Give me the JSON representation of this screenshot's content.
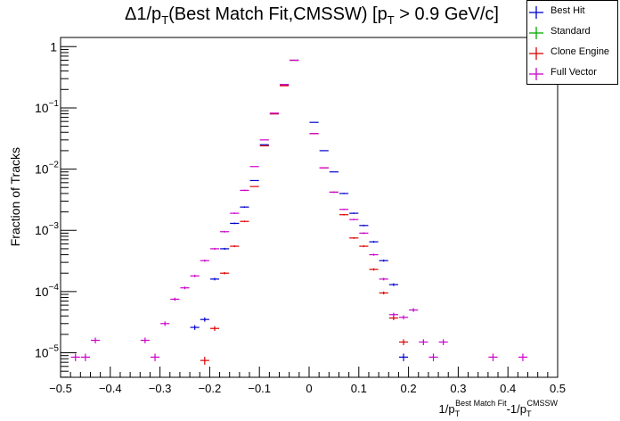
{
  "chart_data": {
    "type": "scatter",
    "title": "Δ1/pT(Best Match Fit,CMSSW) [pT > 0.9 GeV/c]",
    "title_parts": {
      "prefix": "Δ1/p",
      "sub1": "T",
      "middle": "(Best Match Fit,CMSSW) [p",
      "sub2": "T",
      "suffix": " > 0.9 GeV/c]"
    },
    "ylabel": "Fraction of Tracks",
    "xlabel": "1/pT^Best Match Fit-1/pT^CMSSW",
    "xlabel_parts": {
      "a": "1/p",
      "a_sub": "T",
      "a_sup": "Best Match Fit",
      "b": "-1/p",
      "b_sub": "T",
      "b_sup": "CMSSW"
    },
    "xlim": [
      -0.5,
      0.5
    ],
    "ylim_log10": [
      -5.4,
      0.15
    ],
    "y_scale": "log",
    "bin_width": 0.02,
    "x_ticks": [
      "−0.5",
      "−0.4",
      "−0.3",
      "−0.2",
      "−0.1",
      "0",
      "0.1",
      "0.2",
      "0.3",
      "0.4",
      "0.5"
    ],
    "x_tick_values": [
      -0.5,
      -0.4,
      -0.3,
      -0.2,
      -0.1,
      0,
      0.1,
      0.2,
      0.3,
      0.4,
      0.5
    ],
    "y_ticks": [
      {
        "value": 1,
        "base": "1",
        "exp": ""
      },
      {
        "value": 0.1,
        "base": "10",
        "exp": "−1"
      },
      {
        "value": 0.01,
        "base": "10",
        "exp": "−2"
      },
      {
        "value": 0.001,
        "base": "10",
        "exp": "−3"
      },
      {
        "value": 0.0001,
        "base": "10",
        "exp": "−4"
      },
      {
        "value": 1e-05,
        "base": "10",
        "exp": "−5"
      }
    ],
    "legend_position": "top-right",
    "series": [
      {
        "name": "Best Hit",
        "color": "#0000cc",
        "points": [
          {
            "x": -0.23,
            "y": 2.6e-05
          },
          {
            "x": -0.21,
            "y": 3.5e-05
          },
          {
            "x": -0.19,
            "y": 0.00016
          },
          {
            "x": -0.17,
            "y": 0.0005
          },
          {
            "x": -0.15,
            "y": 0.0013
          },
          {
            "x": -0.13,
            "y": 0.0024
          },
          {
            "x": -0.11,
            "y": 0.0065
          },
          {
            "x": -0.09,
            "y": 0.025
          },
          {
            "x": -0.07,
            "y": 0.08
          },
          {
            "x": -0.05,
            "y": 0.24
          },
          {
            "x": -0.03,
            "y": 0.6
          },
          {
            "x": 0.01,
            "y": 0.058
          },
          {
            "x": 0.03,
            "y": 0.02
          },
          {
            "x": 0.05,
            "y": 0.009
          },
          {
            "x": 0.07,
            "y": 0.004
          },
          {
            "x": 0.09,
            "y": 0.0019
          },
          {
            "x": 0.11,
            "y": 0.0012
          },
          {
            "x": 0.13,
            "y": 0.00065
          },
          {
            "x": 0.15,
            "y": 0.00032
          },
          {
            "x": 0.17,
            "y": 0.00013
          },
          {
            "x": 0.19,
            "y": 8.5e-06
          }
        ]
      },
      {
        "name": "Standard",
        "color": "#00aa00",
        "points": []
      },
      {
        "name": "Clone Engine",
        "color": "#dd0000",
        "points": [
          {
            "x": -0.21,
            "y": 7.5e-06
          },
          {
            "x": -0.19,
            "y": 2.5e-05
          },
          {
            "x": -0.17,
            "y": 0.0002
          },
          {
            "x": -0.15,
            "y": 0.00055
          },
          {
            "x": -0.13,
            "y": 0.0014
          },
          {
            "x": -0.11,
            "y": 0.0052
          },
          {
            "x": -0.09,
            "y": 0.024
          },
          {
            "x": -0.07,
            "y": 0.08
          },
          {
            "x": -0.05,
            "y": 0.23
          },
          {
            "x": -0.03,
            "y": 0.6
          },
          {
            "x": 0.01,
            "y": 0.038
          },
          {
            "x": 0.03,
            "y": 0.0105
          },
          {
            "x": 0.05,
            "y": 0.0042
          },
          {
            "x": 0.07,
            "y": 0.0018
          },
          {
            "x": 0.09,
            "y": 0.00075
          },
          {
            "x": 0.11,
            "y": 0.00055
          },
          {
            "x": 0.13,
            "y": 0.00023
          },
          {
            "x": 0.15,
            "y": 9.5e-05
          },
          {
            "x": 0.17,
            "y": 3.7e-05
          },
          {
            "x": 0.19,
            "y": 1.5e-05
          }
        ]
      },
      {
        "name": "Full Vector",
        "color": "#cc00cc",
        "points": [
          {
            "x": -0.47,
            "y": 8.5e-06
          },
          {
            "x": -0.45,
            "y": 8.5e-06
          },
          {
            "x": -0.43,
            "y": 1.6e-05
          },
          {
            "x": -0.33,
            "y": 1.6e-05
          },
          {
            "x": -0.31,
            "y": 8.5e-06
          },
          {
            "x": -0.29,
            "y": 3e-05
          },
          {
            "x": -0.27,
            "y": 7.5e-05
          },
          {
            "x": -0.25,
            "y": 0.000115
          },
          {
            "x": -0.23,
            "y": 0.00018
          },
          {
            "x": -0.21,
            "y": 0.00032
          },
          {
            "x": -0.19,
            "y": 0.0005
          },
          {
            "x": -0.17,
            "y": 0.00095
          },
          {
            "x": -0.15,
            "y": 0.0019
          },
          {
            "x": -0.13,
            "y": 0.0045
          },
          {
            "x": -0.11,
            "y": 0.011
          },
          {
            "x": -0.09,
            "y": 0.03
          },
          {
            "x": -0.07,
            "y": 0.082
          },
          {
            "x": -0.05,
            "y": 0.24
          },
          {
            "x": -0.03,
            "y": 0.6
          },
          {
            "x": 0.01,
            "y": 0.038
          },
          {
            "x": 0.03,
            "y": 0.0105
          },
          {
            "x": 0.05,
            "y": 0.0042
          },
          {
            "x": 0.07,
            "y": 0.0022
          },
          {
            "x": 0.09,
            "y": 0.0015
          },
          {
            "x": 0.11,
            "y": 0.0009
          },
          {
            "x": 0.13,
            "y": 0.0004
          },
          {
            "x": 0.15,
            "y": 0.00016
          },
          {
            "x": 0.17,
            "y": 4.2e-05
          },
          {
            "x": 0.19,
            "y": 3.8e-05
          },
          {
            "x": 0.21,
            "y": 5e-05
          },
          {
            "x": 0.23,
            "y": 1.5e-05
          },
          {
            "x": 0.25,
            "y": 8.5e-06
          },
          {
            "x": 0.27,
            "y": 1.5e-05
          },
          {
            "x": 0.37,
            "y": 8.5e-06
          },
          {
            "x": 0.43,
            "y": 8.5e-06
          }
        ]
      }
    ]
  }
}
